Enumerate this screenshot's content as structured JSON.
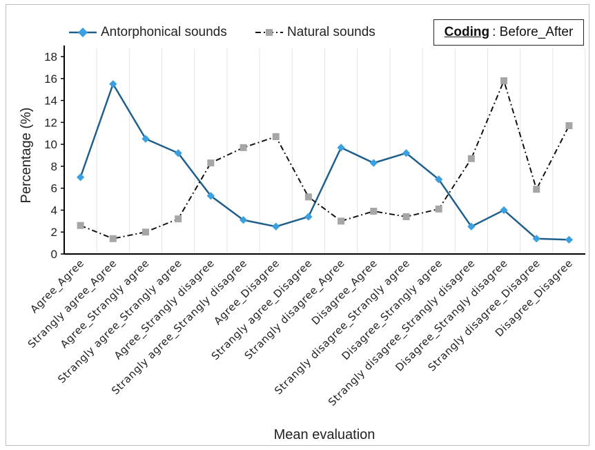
{
  "chart_data": {
    "type": "line",
    "xlabel": "Mean evaluation",
    "ylabel": "Percentage (%)",
    "ylim": [
      0,
      18
    ],
    "yticks": [
      0,
      2,
      4,
      6,
      8,
      10,
      12,
      14,
      16,
      18
    ],
    "grid": "vertical",
    "legend_position": "top",
    "categories": [
      "Agree_Agree",
      "Strangly agree_Agree",
      "Agree_Strangly agree",
      "Strangly agree_Strangly agree",
      "Agree_Strangly disagree",
      "Strangly agree_Strangly disagree",
      "Agree_Disagree",
      "Strangly agree_Disagree",
      "Strangly disagree_Agree",
      "Disagree_Agree",
      "Strangly disagree_Strangly agree",
      "Disagree_Strangly agree",
      "Strangly disagree_Strangly disagree",
      "Disagree_Strangly disagree",
      "Strangly disagree_Disagree",
      "Disagree_Disagree"
    ],
    "series": [
      {
        "name": "Antorphonical sounds",
        "color": "#1f5f8b",
        "marker_color": "#3aa0e0",
        "marker": "diamond",
        "style": "solid",
        "values": [
          7.0,
          15.5,
          10.5,
          9.2,
          5.3,
          3.1,
          2.5,
          3.4,
          9.7,
          8.3,
          9.2,
          6.8,
          2.5,
          4.0,
          1.4,
          1.3
        ]
      },
      {
        "name": "Natural sounds",
        "color": "#111111",
        "marker_color": "#a6a6a6",
        "marker": "square",
        "style": "dash-dot",
        "values": [
          2.6,
          1.4,
          2.0,
          3.2,
          8.3,
          9.7,
          10.7,
          5.2,
          3.0,
          3.9,
          3.4,
          4.1,
          8.7,
          15.8,
          5.9,
          11.7
        ]
      }
    ]
  },
  "coding": {
    "label": "Coding",
    "value": ": Before_After"
  }
}
